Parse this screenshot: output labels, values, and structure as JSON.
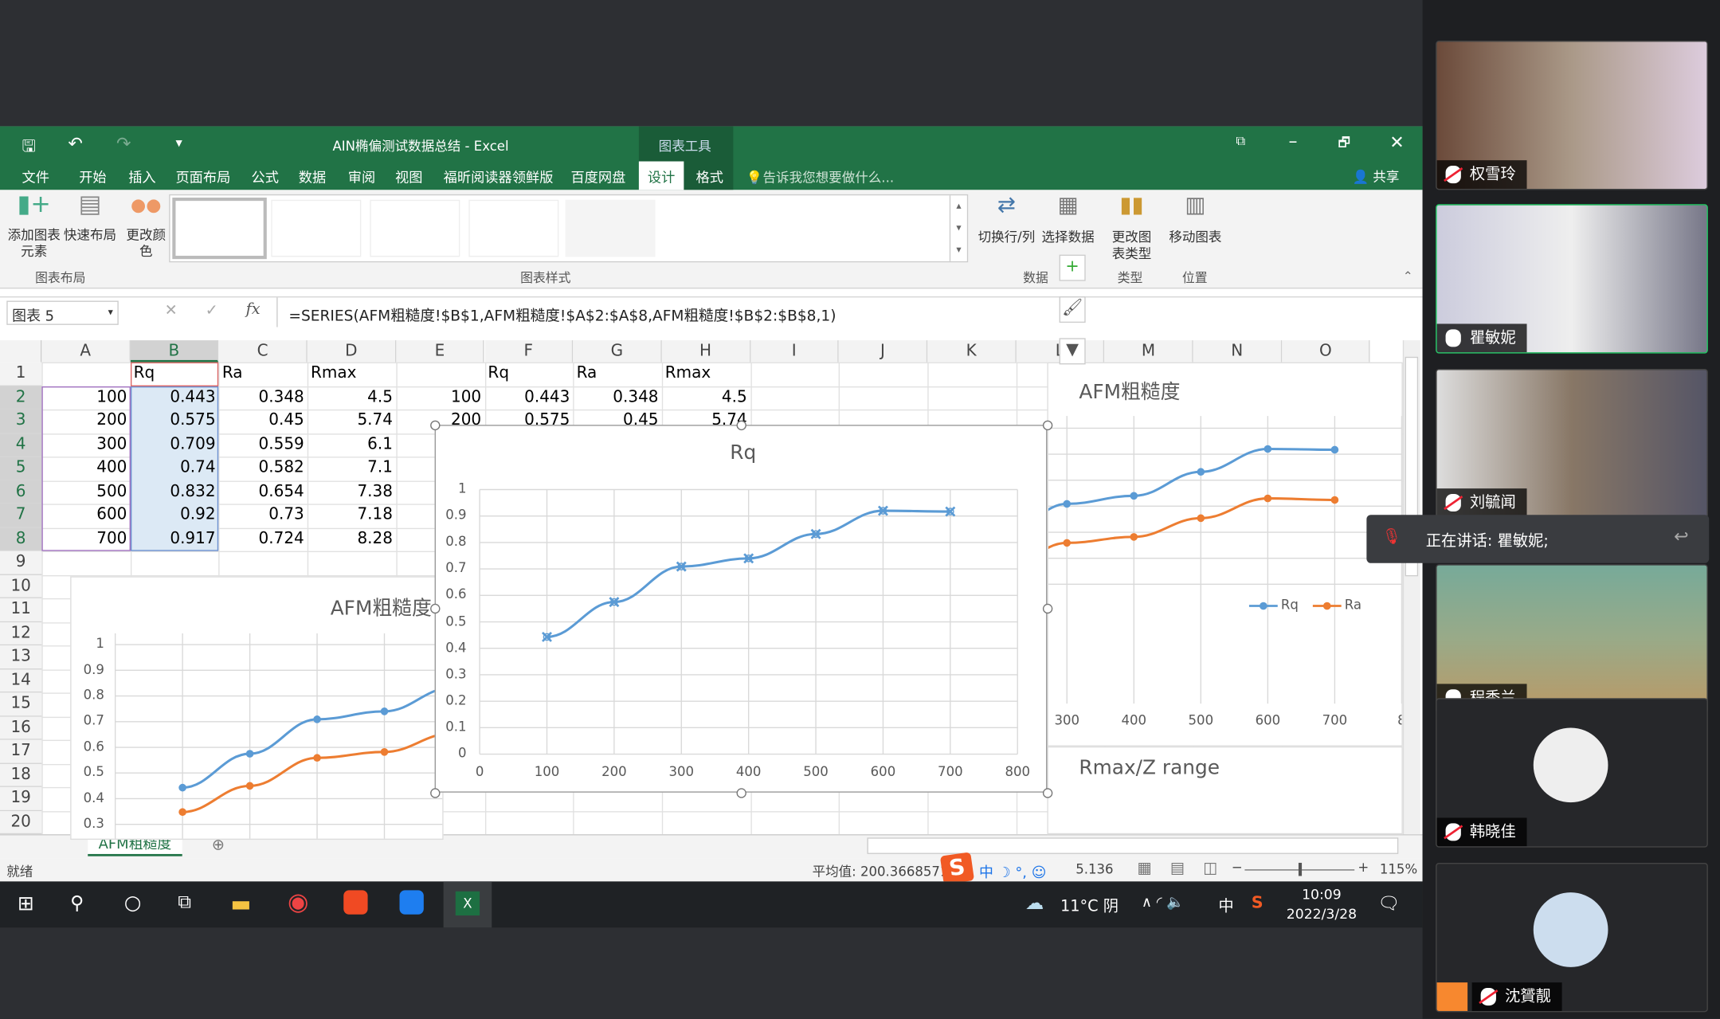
{
  "excel": {
    "title": "AIN椭偏测试数据总结 - Excel",
    "context_tab": "图表工具",
    "tabs": [
      "文件",
      "开始",
      "插入",
      "页面布局",
      "公式",
      "数据",
      "审阅",
      "视图",
      "福昕阅读器领鲜版",
      "百度网盘",
      "设计",
      "格式"
    ],
    "active_tab": "设计",
    "tell_me": "告诉我您想要做什么...",
    "share": "共享",
    "ribbon": {
      "add_element": "添加图表元素",
      "quick_layout": "快速布局",
      "change_colors": "更改颜色",
      "group_layout": "图表布局",
      "group_styles": "图表样式",
      "switch_rowcol": "切换行/列",
      "select_data": "选择数据",
      "group_data": "数据",
      "change_type": "更改图表类型",
      "group_type": "类型",
      "move_chart": "移动图表",
      "group_location": "位置"
    },
    "name_box": "图表 5",
    "formula": "=SERIES(AFM粗糙度!$B$1,AFM粗糙度!$A$2:$A$8,AFM粗糙度!$B$2:$B$8,1)",
    "columns": [
      "A",
      "B",
      "C",
      "D",
      "E",
      "F",
      "G",
      "H",
      "I",
      "J",
      "K",
      "L",
      "M",
      "N",
      "O"
    ],
    "rows": [
      "1",
      "2",
      "3",
      "4",
      "5",
      "6",
      "7",
      "8",
      "9",
      "10",
      "11",
      "12",
      "13",
      "14",
      "15",
      "16",
      "17",
      "18",
      "19",
      "20"
    ],
    "table": {
      "header": [
        "",
        "Rq",
        "Ra",
        "Rmax"
      ],
      "data": [
        [
          "100",
          "0.443",
          "0.348",
          "4.5"
        ],
        [
          "200",
          "0.575",
          "0.45",
          "5.74"
        ],
        [
          "300",
          "0.709",
          "0.559",
          "6.1"
        ],
        [
          "400",
          "0.74",
          "0.582",
          "7.1"
        ],
        [
          "500",
          "0.832",
          "0.654",
          "7.38"
        ],
        [
          "600",
          "0.92",
          "0.73",
          "7.18"
        ],
        [
          "700",
          "0.917",
          "0.724",
          "8.28"
        ]
      ]
    },
    "table2": {
      "header": [
        "",
        "Rq",
        "Ra",
        "Rmax"
      ],
      "data": [
        [
          "100",
          "0.443",
          "0.348",
          "4.5"
        ],
        [
          "200",
          "0.575",
          "0.45",
          "5.74"
        ]
      ]
    },
    "sheet_tab": "AFM粗糙度",
    "status_ready": "就绪",
    "status_avg": "平均值: 200.3668571",
    "status_sum": "5.136",
    "zoom": "115%"
  },
  "chart_data": [
    {
      "id": "rq",
      "type": "line",
      "title": "Rq",
      "x": [
        100,
        200,
        300,
        400,
        500,
        600,
        700
      ],
      "series": [
        {
          "name": "Rq",
          "values": [
            0.443,
            0.575,
            0.709,
            0.74,
            0.832,
            0.92,
            0.917
          ],
          "color": "#5b9bd5"
        }
      ],
      "xlim": [
        0,
        800
      ],
      "ylim": [
        0,
        1
      ],
      "xticks": [
        "0",
        "100",
        "200",
        "300",
        "400",
        "500",
        "600",
        "700",
        "800"
      ],
      "yticks": [
        "0",
        "0.1",
        "0.2",
        "0.3",
        "0.4",
        "0.5",
        "0.6",
        "0.7",
        "0.8",
        "0.9",
        "1"
      ],
      "grid": true,
      "marker": "x",
      "selected": true
    },
    {
      "id": "afm_left",
      "type": "line",
      "title": "AFM粗糙度",
      "x": [
        100,
        200,
        300,
        400,
        500,
        600,
        700
      ],
      "series": [
        {
          "name": "Rq",
          "values": [
            0.443,
            0.575,
            0.709,
            0.74,
            0.832,
            0.92,
            0.917
          ],
          "color": "#5b9bd5"
        },
        {
          "name": "Ra",
          "values": [
            0.348,
            0.45,
            0.559,
            0.582,
            0.654,
            0.73,
            0.724
          ],
          "color": "#ed7d31"
        }
      ],
      "yticks": [
        "0.3",
        "0.4",
        "0.5",
        "0.6",
        "0.7",
        "0.8",
        "0.9",
        "1"
      ],
      "grid": true,
      "legend": "bottom"
    },
    {
      "id": "afm_right",
      "type": "line",
      "title": "AFM粗糙度",
      "x": [
        100,
        200,
        300,
        400,
        500,
        600,
        700
      ],
      "series": [
        {
          "name": "Rq",
          "values": [
            0.443,
            0.575,
            0.709,
            0.74,
            0.832,
            0.92,
            0.917
          ],
          "color": "#5b9bd5"
        },
        {
          "name": "Ra",
          "values": [
            0.348,
            0.45,
            0.559,
            0.582,
            0.654,
            0.73,
            0.724
          ],
          "color": "#ed7d31"
        }
      ],
      "xticks": [
        "300",
        "400",
        "500",
        "600",
        "700",
        "8"
      ],
      "grid": true,
      "legend": "bottom"
    },
    {
      "id": "rmax",
      "type": "line",
      "title": "Rmax/Z range",
      "yticks": [
        "9",
        "8"
      ]
    }
  ],
  "taskbar": {
    "weather": "11°C 阴",
    "ime": "中",
    "time": "10:09",
    "date": "2022/3/28"
  },
  "meeting": {
    "speaking": "正在讲话: 瞿敏妮;",
    "participants": [
      {
        "name": "权雪玲",
        "muted": true
      },
      {
        "name": "瞿敏妮",
        "muted": false
      },
      {
        "name": "刘毓闻",
        "muted": true
      },
      {
        "name": "程秀兰",
        "muted": false
      },
      {
        "name": "韩晓佳",
        "muted": true
      },
      {
        "name": "沈贇靓",
        "muted": true
      }
    ]
  }
}
